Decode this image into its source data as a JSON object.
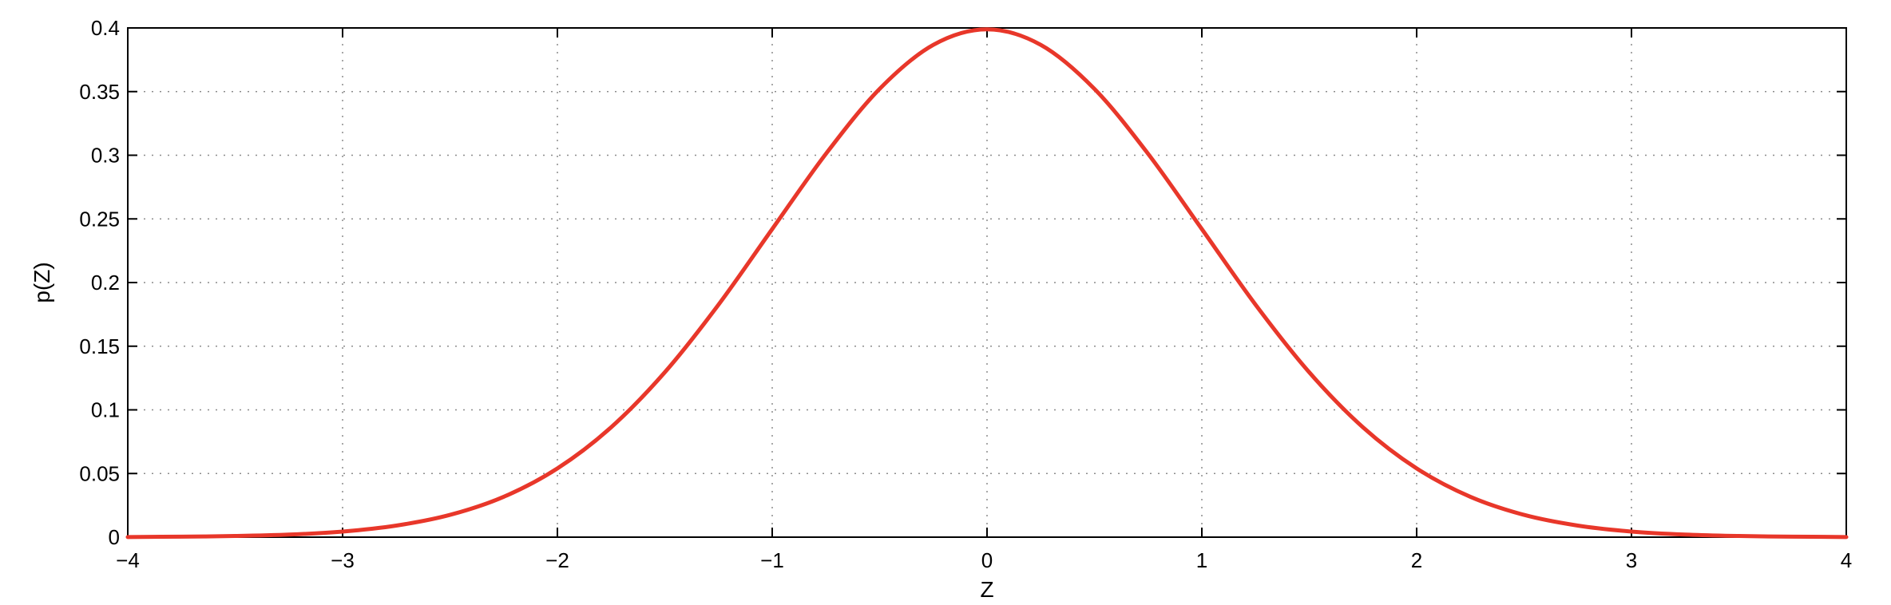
{
  "chart_data": {
    "type": "line",
    "title": "",
    "xlabel": "Z",
    "ylabel": "p(Z)",
    "xlim": [
      -4,
      4
    ],
    "ylim": [
      0,
      0.4
    ],
    "grid": true,
    "legend": "none",
    "x_ticks": [
      -4,
      -3,
      -2,
      -1,
      0,
      1,
      2,
      3,
      4
    ],
    "x_tick_labels": [
      "−4",
      "−3",
      "−2",
      "−1",
      "0",
      "1",
      "2",
      "3",
      "4"
    ],
    "y_ticks": [
      0,
      0.05,
      0.1,
      0.15,
      0.2,
      0.25,
      0.3,
      0.35,
      0.4
    ],
    "y_tick_labels": [
      "0",
      "0.05",
      "0.1",
      "0.15",
      "0.2",
      "0.25",
      "0.3",
      "0.35",
      "0.4"
    ],
    "series": [
      {
        "color": "#e8372a",
        "x": [
          -4,
          -3.75,
          -3.5,
          -3.25,
          -3,
          -2.75,
          -2.5,
          -2.25,
          -2,
          -1.75,
          -1.5,
          -1.25,
          -1,
          -0.75,
          -0.5,
          -0.25,
          0,
          0.25,
          0.5,
          0.75,
          1,
          1.25,
          1.5,
          1.75,
          2,
          2.25,
          2.5,
          2.75,
          3,
          3.25,
          3.5,
          3.75,
          4
        ],
        "y": [
          0.0001,
          0.0004,
          0.0009,
          0.002,
          0.0044,
          0.0091,
          0.0175,
          0.0317,
          0.054,
          0.0863,
          0.1295,
          0.1826,
          0.242,
          0.3011,
          0.3521,
          0.3867,
          0.3989,
          0.3867,
          0.3521,
          0.3011,
          0.242,
          0.1826,
          0.1295,
          0.0863,
          0.054,
          0.0317,
          0.0175,
          0.0091,
          0.0044,
          0.002,
          0.0009,
          0.0004,
          0.0001
        ]
      }
    ]
  }
}
